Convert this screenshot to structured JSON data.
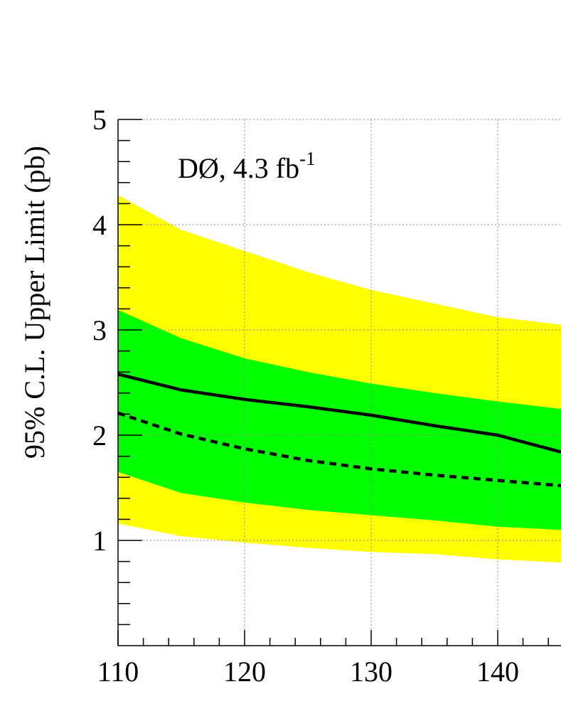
{
  "chart_data": {
    "type": "line",
    "annotation": {
      "main": "DØ, 4.3 fb",
      "superscript": "-1"
    },
    "ylabel": "95% C.L. Upper Limit (pb)",
    "xlabel": "",
    "xlim": [
      110,
      145
    ],
    "ylim": [
      0,
      5
    ],
    "x_ticks": [
      "110",
      "120",
      "130",
      "140"
    ],
    "y_ticks": [
      "1",
      "2",
      "3",
      "4",
      "5"
    ],
    "grid": true,
    "colors": {
      "band_2sigma": "#ffff00",
      "band_1sigma": "#00ff00",
      "observed": "#000000",
      "expected": "#000000"
    },
    "x": [
      110,
      115,
      120,
      125,
      130,
      135,
      140,
      145
    ],
    "series": [
      {
        "role": "band_2sigma_upper",
        "values": [
          4.28,
          3.95,
          3.75,
          3.55,
          3.38,
          3.25,
          3.12,
          3.05
        ]
      },
      {
        "role": "band_2sigma_lower",
        "values": [
          1.16,
          1.04,
          0.98,
          0.93,
          0.89,
          0.87,
          0.82,
          0.79
        ]
      },
      {
        "role": "band_1sigma_upper",
        "values": [
          3.19,
          2.92,
          2.73,
          2.6,
          2.49,
          2.4,
          2.32,
          2.25
        ]
      },
      {
        "role": "band_1sigma_lower",
        "values": [
          1.65,
          1.45,
          1.36,
          1.29,
          1.24,
          1.19,
          1.13,
          1.1
        ]
      },
      {
        "role": "observed",
        "style": "solid",
        "values": [
          2.58,
          2.43,
          2.34,
          2.27,
          2.19,
          2.09,
          2.0,
          1.84
        ]
      },
      {
        "role": "expected",
        "style": "dashed",
        "values": [
          2.21,
          2.01,
          1.87,
          1.76,
          1.68,
          1.62,
          1.57,
          1.52
        ]
      }
    ]
  }
}
